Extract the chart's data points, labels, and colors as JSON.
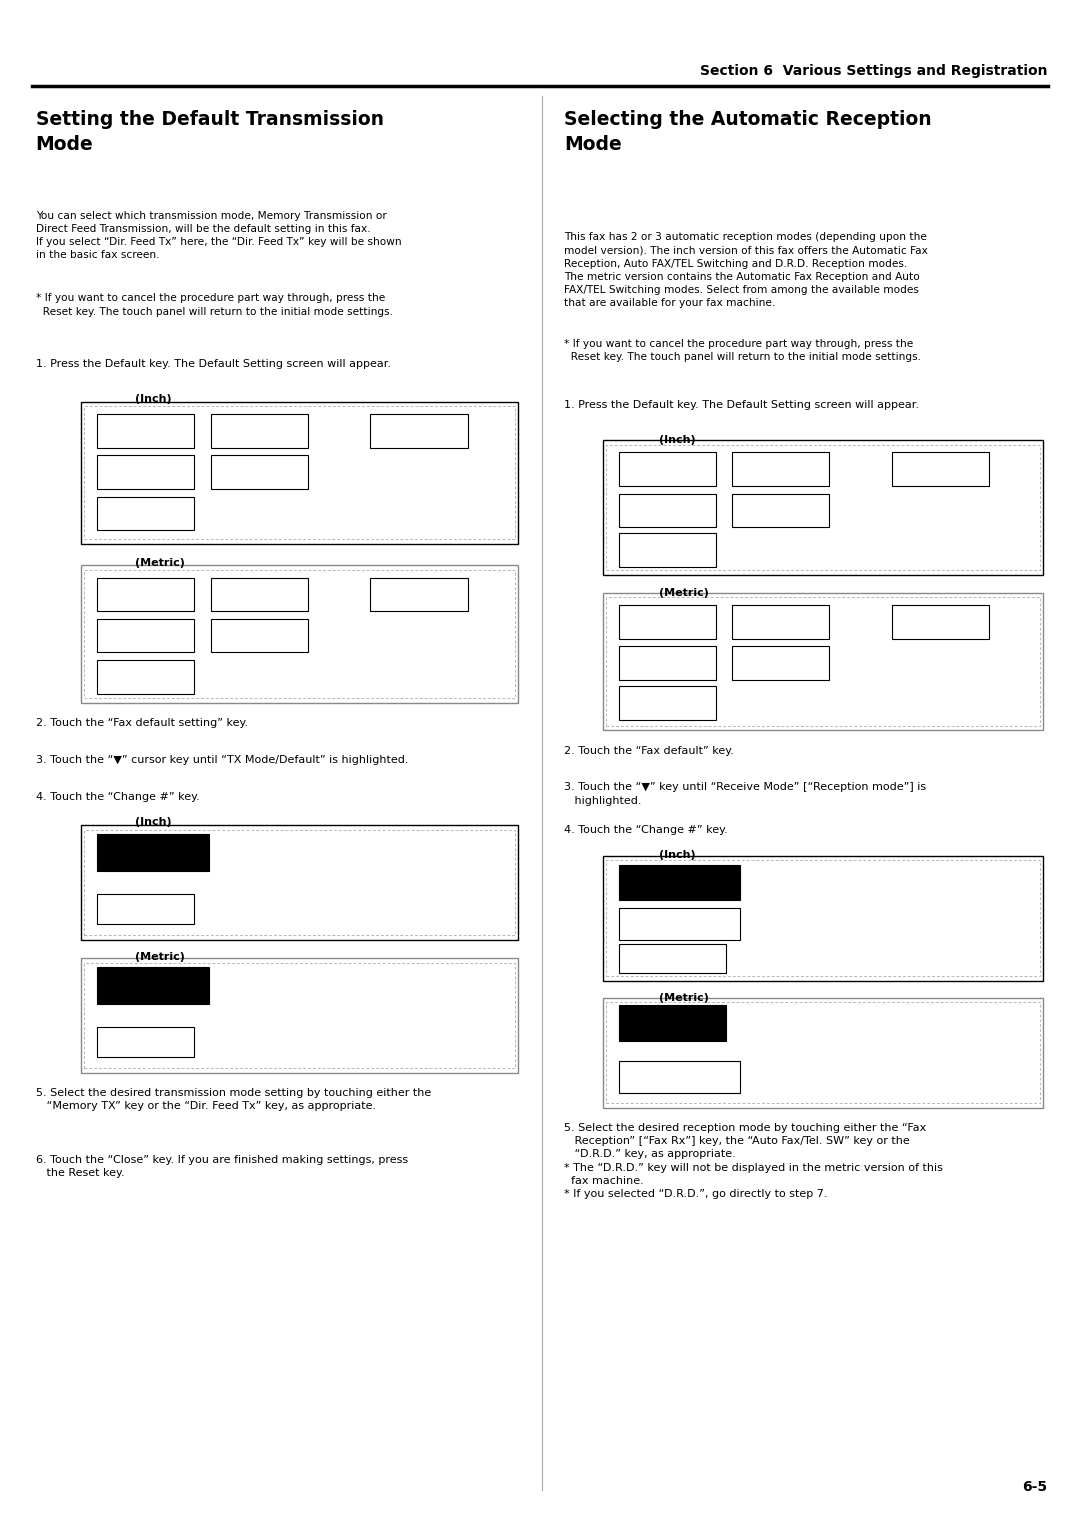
{
  "page_width": 10.8,
  "page_height": 15.28,
  "background_color": "#ffffff",
  "header_text": "Section 6  Various Settings and Registration",
  "footer_text": "6-5",
  "left_col": {
    "title": "Setting the Default Transmission\nMode",
    "body1": "You can select which transmission mode, Memory Transmission or\nDirect Feed Transmission, will be the default setting in this fax.\nIf you select “Dir. Feed Tx” here, the “Dir. Feed Tx” key will be shown\nin the basic fax screen.",
    "note1": "* If you want to cancel the procedure part way through, press the\n  Reset key. The touch panel will return to the initial mode settings.",
    "step1": "1. Press the Default key. The Default Setting screen will appear.",
    "step2": "2. Touch the “Fax default setting” key.",
    "step3": "3. Touch the “▼” cursor key until “TX Mode/Default” is highlighted.",
    "step4": "4. Touch the “Change #” key.",
    "step5": "5. Select the desired transmission mode setting by touching either the\n   “Memory TX” key or the “Dir. Feed Tx” key, as appropriate.",
    "step6": "6. Touch the “Close” key. If you are finished making settings, press\n   the Reset key."
  },
  "right_col": {
    "title": "Selecting the Automatic Reception\nMode",
    "body1": "This fax has 2 or 3 automatic reception modes (depending upon the\nmodel version). The inch version of this fax offers the Automatic Fax\nReception, Auto FAX/TEL Switching and D.R.D. Reception modes.\nThe metric version contains the Automatic Fax Reception and Auto\nFAX/TEL Switching modes. Select from among the available modes\nthat are available for your fax machine.",
    "note1": "* If you want to cancel the procedure part way through, press the\n  Reset key. The touch panel will return to the initial mode settings.",
    "step1": "1. Press the Default key. The Default Setting screen will appear.",
    "step2": "2. Touch the “Fax default” key.",
    "step3": "3. Touch the “▼” key until “Receive Mode” [“Reception mode”] is\n   highlighted.",
    "step4": "4. Touch the “Change #” key.",
    "step5": "5. Select the desired reception mode by touching either the “Fax\n   Reception” [“Fax Rx”] key, the “Auto Fax/Tel. SW” key or the\n   “D.R.D.” key, as appropriate.\n* The “D.R.D.” key will not be displayed in the metric version of this\n  fax machine.\n* If you selected “D.R.D.”, go directly to step 7."
  }
}
